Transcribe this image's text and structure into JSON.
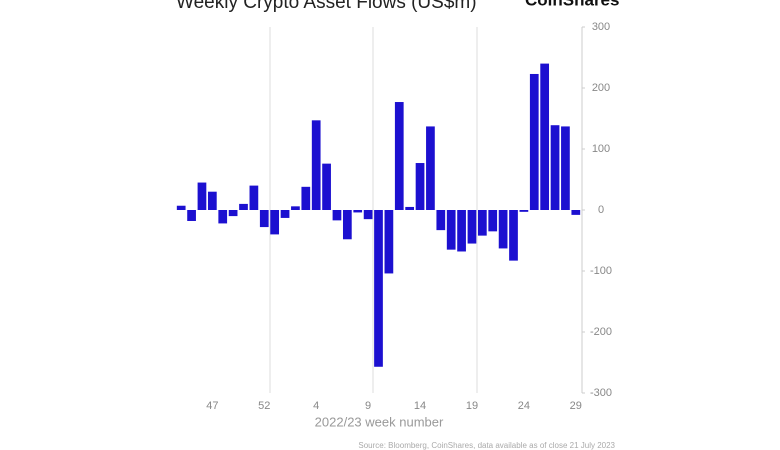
{
  "chart_data": {
    "type": "bar",
    "title": "Weekly Crypto Asset Flows (US$m)",
    "brand": "CoinShares",
    "x_label": "2022/23 week number",
    "source": "Source: Bloomberg, CoinShares, data available as of close 21 July 2023",
    "categories": [
      null,
      null,
      null,
      "47",
      null,
      null,
      null,
      null,
      "52",
      null,
      null,
      null,
      null,
      "4",
      null,
      null,
      null,
      null,
      "9",
      null,
      null,
      null,
      null,
      "14",
      null,
      null,
      null,
      null,
      "19",
      null,
      null,
      null,
      null,
      "24",
      null,
      null,
      null,
      null,
      "29"
    ],
    "values": [
      7,
      -18,
      45,
      30,
      -22,
      -10,
      10,
      40,
      -28,
      -40,
      -13,
      6,
      38,
      147,
      76,
      -17,
      -48,
      -4,
      -15,
      -257,
      -104,
      177,
      5,
      77,
      137,
      -33,
      -65,
      -68,
      -55,
      -42,
      -35,
      -63,
      -83,
      -3,
      223,
      240,
      139,
      137,
      -8
    ],
    "color": "#1c10d0",
    "ylim": [
      -300,
      300
    ],
    "yticks": [
      -300,
      -200,
      -100,
      0,
      100,
      200,
      300
    ]
  }
}
